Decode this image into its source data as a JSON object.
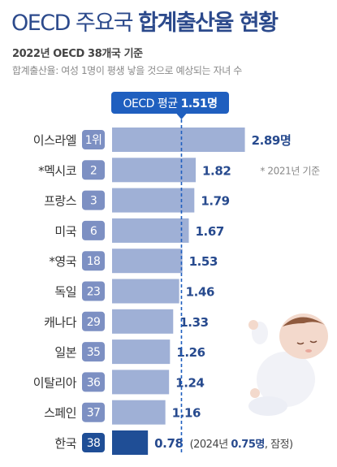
{
  "header": {
    "title_light": "OECD 주요국",
    "title_bold": "합계출산율 현황",
    "subtitle": "2022년 OECD 38개국 기준",
    "note": "합계출산율: 여성 1명이 평생 낳을 것으로 예상되는 자녀 수"
  },
  "chart_data": {
    "type": "bar",
    "orientation": "horizontal",
    "categories": [
      "이스라엘",
      "*멕시코",
      "프랑스",
      "미국",
      "*영국",
      "독일",
      "캐나다",
      "일본",
      "이탈리아",
      "스페인",
      "한국"
    ],
    "ranks": [
      "1위",
      "2",
      "3",
      "6",
      "18",
      "23",
      "29",
      "35",
      "36",
      "37",
      "38"
    ],
    "values": [
      2.89,
      1.82,
      1.79,
      1.67,
      1.53,
      1.46,
      1.33,
      1.26,
      1.24,
      1.16,
      0.78
    ],
    "value_labels": [
      "2.89명",
      "1.82",
      "1.79",
      "1.67",
      "1.53",
      "1.46",
      "1.33",
      "1.26",
      "1.24",
      "1.16",
      "0.78"
    ],
    "reference_line": {
      "value": 1.51,
      "label_prefix": "OECD 평균 ",
      "label_value": "1.51명"
    },
    "annotations": [
      {
        "category": "*멕시코",
        "text": "* 2021년 기준"
      },
      {
        "category": "한국",
        "text_prefix": "(2024년 ",
        "text_value": "0.75명",
        "text_suffix": ", 잠정)"
      }
    ],
    "colors": {
      "bar": "#9fb0d6",
      "highlight_bar": "#1f4e96",
      "badge": "#7d90c3",
      "highlight_badge": "#1f4e96",
      "value_text": "#274a8e",
      "reference": "#1f5fbf"
    }
  }
}
